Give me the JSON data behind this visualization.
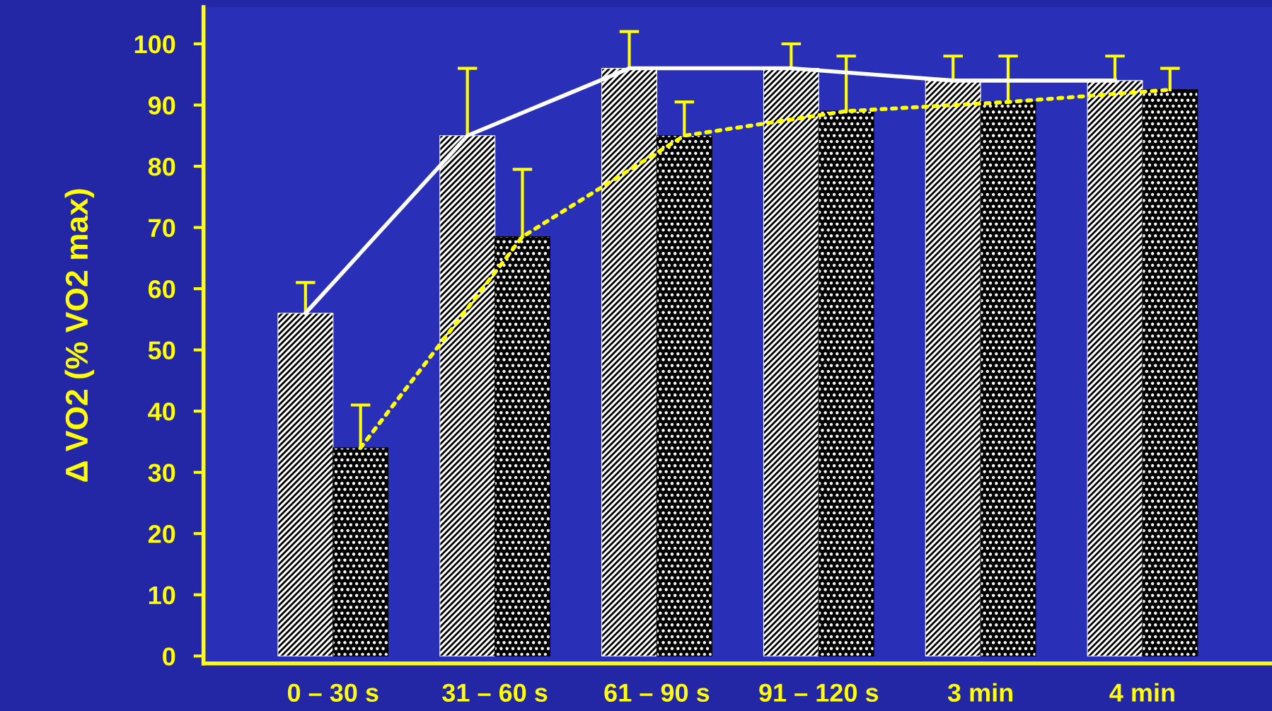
{
  "chart_data": {
    "type": "bar",
    "ylabel": "Δ VO2 (% VO2 max)",
    "categories": [
      "0 – 30 s",
      "31 – 60 s",
      "61 – 90 s",
      "91 – 120 s",
      "3 min",
      "4 min"
    ],
    "series": [
      {
        "color": "#ffffff",
        "values": [
          56,
          85,
          96,
          96,
          94,
          94
        ],
        "errors": [
          [
            56,
            61
          ],
          [
            85,
            96
          ],
          [
            96,
            102
          ],
          [
            96,
            100
          ],
          [
            94,
            98
          ],
          [
            94,
            98
          ]
        ]
      },
      {
        "color": "#000000",
        "values": [
          34,
          68.5,
          85,
          89,
          90.5,
          92.5
        ],
        "errors": [
          [
            34,
            41
          ],
          [
            68.5,
            79.5
          ],
          [
            85,
            90.5
          ],
          [
            89,
            98
          ],
          [
            90.5,
            98
          ],
          [
            92.5,
            96
          ]
        ]
      },
      {
        "type": "line",
        "color": "#ffffff",
        "line_style": "solid",
        "values": [
          56,
          85,
          96,
          96,
          94,
          94
        ]
      },
      {
        "type": "line",
        "color": "#ffff00",
        "line_style": "dotted",
        "values": [
          34,
          68.5,
          85,
          89,
          90.5,
          92.5
        ]
      }
    ],
    "ylim": [
      -1.2,
      106
    ],
    "yticks": [
      0,
      10,
      20,
      30,
      40,
      50,
      60,
      70,
      80,
      90,
      100
    ],
    "grid": false,
    "legend": false
  }
}
